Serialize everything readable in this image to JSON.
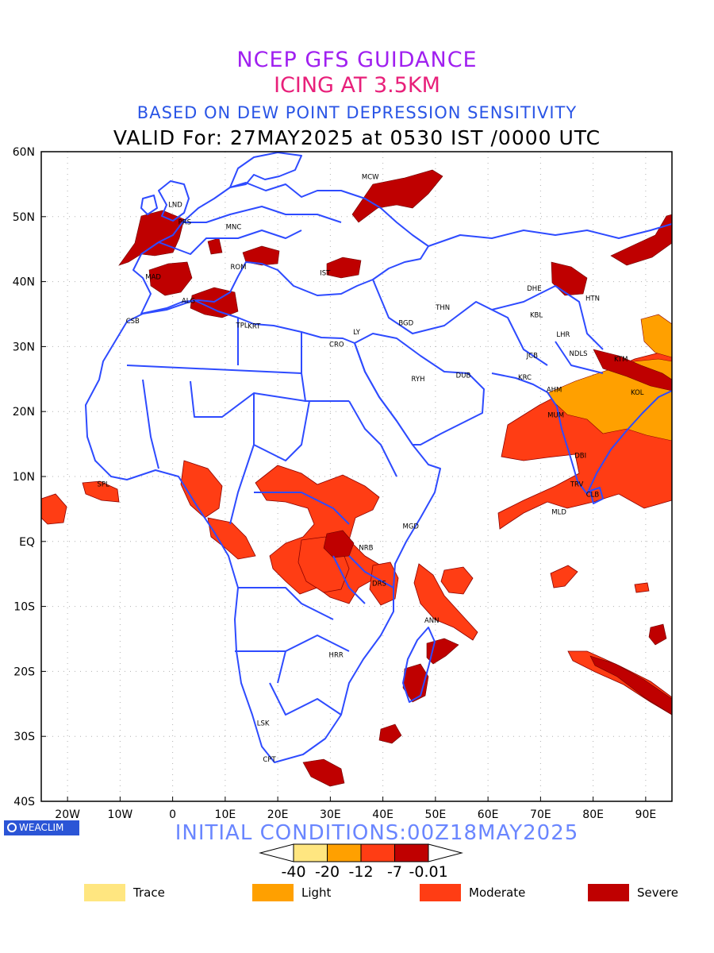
{
  "titles": {
    "line1": "NCEP GFS GUIDANCE",
    "line2": "ICING AT 3.5KM",
    "line3": "BASED ON DEW POINT DEPRESSION SENSITIVITY",
    "line4": "VALID For: 27MAY2025 at 0530 IST /0000 UTC",
    "initial": "INITIAL CONDITIONS:00Z18MAY2025"
  },
  "colors": {
    "title1": "#a020f0",
    "title2": "#e8207a",
    "title3": "#2a55e6",
    "boundary": "#2e4bff",
    "trace": "#ffe680",
    "light": "#ffa000",
    "moderate": "#ff3d14",
    "severe": "#bf0000"
  },
  "logo": {
    "text": "WEACLIM",
    "icon": "circle-logo-icon"
  },
  "axes": {
    "lat_labels": [
      "60N",
      "50N",
      "40N",
      "30N",
      "20N",
      "10N",
      "EQ",
      "10S",
      "20S",
      "30S",
      "40S"
    ],
    "lon_labels": [
      "20W",
      "10W",
      "0",
      "10E",
      "20E",
      "30E",
      "40E",
      "50E",
      "60E",
      "70E",
      "80E",
      "90E"
    ]
  },
  "stations": [
    {
      "name": "MCW",
      "lat": 55.8,
      "lon": 37.6
    },
    {
      "name": "LND",
      "lat": 51.5,
      "lon": 0.5
    },
    {
      "name": "PRS",
      "lat": 48.8,
      "lon": 2.3
    },
    {
      "name": "MNC",
      "lat": 48.1,
      "lon": 11.6
    },
    {
      "name": "ROM",
      "lat": 41.9,
      "lon": 12.5
    },
    {
      "name": "MAD",
      "lat": 40.4,
      "lon": -3.7
    },
    {
      "name": "ALG",
      "lat": 36.7,
      "lon": 3.0
    },
    {
      "name": "IST",
      "lat": 41.0,
      "lon": 29.0
    },
    {
      "name": "CSB",
      "lat": 33.6,
      "lon": -7.6
    },
    {
      "name": "TPL",
      "lat": 32.9,
      "lon": 13.2
    },
    {
      "name": "KRT",
      "lat": 32.8,
      "lon": 15.5
    },
    {
      "name": "BGD",
      "lat": 33.3,
      "lon": 44.4
    },
    {
      "name": "THN",
      "lat": 35.7,
      "lon": 51.4
    },
    {
      "name": "DHE",
      "lat": 38.6,
      "lon": 68.8
    },
    {
      "name": "KBL",
      "lat": 34.5,
      "lon": 69.2
    },
    {
      "name": "HTN",
      "lat": 37.1,
      "lon": 79.9
    },
    {
      "name": "LHR",
      "lat": 31.5,
      "lon": 74.3
    },
    {
      "name": "NDLS",
      "lat": 28.6,
      "lon": 77.2
    },
    {
      "name": "KTM",
      "lat": 27.7,
      "lon": 85.3
    },
    {
      "name": "JCB",
      "lat": 28.3,
      "lon": 68.4
    },
    {
      "name": "KRC",
      "lat": 24.9,
      "lon": 67.0
    },
    {
      "name": "AHM",
      "lat": 23.0,
      "lon": 72.6
    },
    {
      "name": "KOL",
      "lat": 22.6,
      "lon": 88.4
    },
    {
      "name": "MUM",
      "lat": 19.1,
      "lon": 72.9
    },
    {
      "name": "DBI",
      "lat": 12.9,
      "lon": 77.6
    },
    {
      "name": "TRV",
      "lat": 8.5,
      "lon": 76.9
    },
    {
      "name": "CLB",
      "lat": 6.9,
      "lon": 79.9
    },
    {
      "name": "MLD",
      "lat": 4.2,
      "lon": 73.5
    },
    {
      "name": "LY",
      "lat": 31.9,
      "lon": 35.0
    },
    {
      "name": "CRO",
      "lat": 30.0,
      "lon": 31.2
    },
    {
      "name": "RYH",
      "lat": 24.7,
      "lon": 46.7
    },
    {
      "name": "DUB",
      "lat": 25.2,
      "lon": 55.3
    },
    {
      "name": "SPL",
      "lat": 8.5,
      "lon": -13.2
    },
    {
      "name": "MGD",
      "lat": 2.0,
      "lon": 45.3
    },
    {
      "name": "NRB",
      "lat": -1.3,
      "lon": 36.8
    },
    {
      "name": "DRS",
      "lat": -6.8,
      "lon": 39.3
    },
    {
      "name": "ANN",
      "lat": -12.5,
      "lon": 49.3
    },
    {
      "name": "HRR",
      "lat": -17.8,
      "lon": 31.1
    },
    {
      "name": "LSK",
      "lat": -28.3,
      "lon": 17.2
    },
    {
      "name": "CPT",
      "lat": -33.9,
      "lon": 18.4
    }
  ],
  "colorbar": {
    "labels": [
      "-40",
      "-20",
      "-12",
      "-7",
      "-0.01"
    ],
    "fills": [
      "#ffe680",
      "#ffa000",
      "#ff3d14",
      "#bf0000"
    ]
  },
  "legend": [
    {
      "label": "Trace",
      "color": "#ffe680"
    },
    {
      "label": "Light",
      "color": "#ffa000"
    },
    {
      "label": "Moderate",
      "color": "#ff3d14"
    },
    {
      "label": "Severe",
      "color": "#bf0000"
    }
  ]
}
